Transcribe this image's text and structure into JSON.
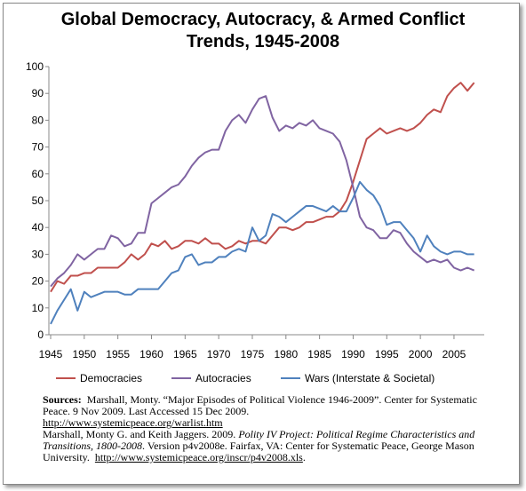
{
  "chart_data": {
    "type": "line",
    "title": "Global Democracy, Autocracy, & Armed Conflict Trends, 1945-2008",
    "x": [
      1945,
      1946,
      1947,
      1948,
      1949,
      1950,
      1951,
      1952,
      1953,
      1954,
      1955,
      1956,
      1957,
      1958,
      1959,
      1960,
      1961,
      1962,
      1963,
      1964,
      1965,
      1966,
      1967,
      1968,
      1969,
      1970,
      1971,
      1972,
      1973,
      1974,
      1975,
      1976,
      1977,
      1978,
      1979,
      1980,
      1981,
      1982,
      1983,
      1984,
      1985,
      1986,
      1987,
      1988,
      1989,
      1990,
      1991,
      1992,
      1993,
      1994,
      1995,
      1996,
      1997,
      1998,
      1999,
      2000,
      2001,
      2002,
      2003,
      2004,
      2005,
      2006,
      2007,
      2008
    ],
    "series": [
      {
        "name": "Democracies",
        "color": "#c0504d",
        "values": [
          16,
          20,
          19,
          22,
          22,
          23,
          23,
          25,
          25,
          25,
          25,
          27,
          30,
          28,
          30,
          34,
          33,
          35,
          32,
          33,
          35,
          35,
          34,
          36,
          34,
          34,
          32,
          33,
          35,
          34,
          35,
          35,
          34,
          37,
          40,
          40,
          39,
          40,
          42,
          42,
          43,
          44,
          44,
          46,
          50,
          57,
          65,
          73,
          75,
          77,
          75,
          76,
          77,
          76,
          77,
          79,
          82,
          84,
          83,
          89,
          92,
          94,
          91,
          94
        ]
      },
      {
        "name": "Autocracies",
        "color": "#8064a2",
        "values": [
          18,
          21,
          23,
          26,
          30,
          28,
          30,
          32,
          32,
          37,
          36,
          33,
          34,
          38,
          38,
          49,
          51,
          53,
          55,
          56,
          59,
          63,
          66,
          68,
          69,
          69,
          76,
          80,
          82,
          79,
          84,
          88,
          89,
          81,
          76,
          78,
          77,
          79,
          78,
          80,
          77,
          76,
          75,
          72,
          65,
          55,
          44,
          40,
          39,
          36,
          36,
          39,
          38,
          34,
          31,
          29,
          27,
          28,
          27,
          28,
          25,
          24,
          25,
          24
        ]
      },
      {
        "name": "Wars (Interstate & Societal)",
        "color": "#4f81bd",
        "values": [
          4,
          9,
          13,
          17,
          9,
          16,
          14,
          15,
          16,
          16,
          16,
          15,
          15,
          17,
          17,
          17,
          17,
          20,
          23,
          24,
          29,
          30,
          26,
          27,
          27,
          29,
          29,
          31,
          32,
          31,
          40,
          35,
          37,
          45,
          44,
          42,
          44,
          46,
          48,
          48,
          47,
          46,
          48,
          46,
          46,
          51,
          57,
          54,
          52,
          48,
          41,
          42,
          42,
          39,
          36,
          31,
          37,
          33,
          31,
          30,
          31,
          31,
          30,
          30
        ]
      }
    ],
    "xlim": [
      1945,
      2009.5
    ],
    "xticks": [
      1945,
      1950,
      1955,
      1960,
      1965,
      1970,
      1975,
      1980,
      1985,
      1990,
      1995,
      2000,
      2005
    ],
    "ylim": [
      0,
      100
    ],
    "yticks": [
      0,
      10,
      20,
      30,
      40,
      50,
      60,
      70,
      80,
      90,
      100
    ],
    "grid": false,
    "legend": "bottom"
  },
  "sources": {
    "label": "Sources:",
    "ref1": "Marshall, Monty.  “Major Episodes of Political Violence 1946-2009”.  Center for Systematic Peace. 9 Nov 2009.  Last Accessed 15 Dec 2009.",
    "link1": "http://www.systemicpeace.org/warlist.htm",
    "ref2_start": "Marshall, Monty G. and Keith Jaggers. 2009.",
    "ref2_title": "Polity IV Project: Political Regime Characteristics and Transitions, 1800-2008",
    "ref2_end": ". Version p4v2008e. Fairfax, VA: Center for Systematic Peace, George Mason University.",
    "link2": "http://www.systemicpeace.org/inscr/p4v2008.xls"
  }
}
